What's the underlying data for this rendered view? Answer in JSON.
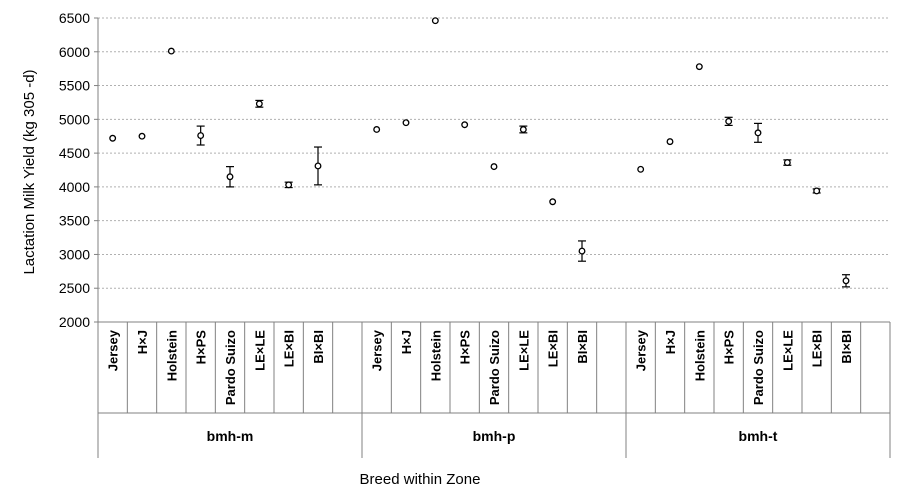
{
  "chart_data": {
    "type": "scatter",
    "ylabel": "Lactation Milk Yield  (kg  305 -d)",
    "xlabel": "Breed within Zone",
    "ylim": [
      2000,
      6500
    ],
    "ytick_step": 500,
    "y_ticks": [
      "2000",
      "2500",
      "3000",
      "3500",
      "4000",
      "4500",
      "5000",
      "5500",
      "6000",
      "6500"
    ],
    "grid": "horizontal-dotted",
    "colors": {
      "marker": "#000000",
      "grid": "#b0b0b0",
      "axis": "#808080"
    },
    "zones": [
      {
        "name": "bmh-m",
        "points": [
          {
            "breed": "Jersey",
            "y": 4720,
            "err": 0
          },
          {
            "breed": "H×J",
            "y": 4750,
            "err": 0
          },
          {
            "breed": "Holstein",
            "y": 6010,
            "err": 0
          },
          {
            "breed": "H×PS",
            "y": 4760,
            "err": 140
          },
          {
            "breed": "Pardo Suizo",
            "y": 4150,
            "err": 150
          },
          {
            "breed": "LE×LE",
            "y": 5230,
            "err": 50
          },
          {
            "breed": "LE×BI",
            "y": 4030,
            "err": 40
          },
          {
            "breed": "BI×BI",
            "y": 4310,
            "err": 280
          }
        ]
      },
      {
        "name": "bmh-p",
        "points": [
          {
            "breed": "Jersey",
            "y": 4850,
            "err": 0
          },
          {
            "breed": "H×J",
            "y": 4950,
            "err": 0
          },
          {
            "breed": "Holstein",
            "y": 6460,
            "err": 0
          },
          {
            "breed": "H×PS",
            "y": 4920,
            "err": 0
          },
          {
            "breed": "Pardo Suizo",
            "y": 4300,
            "err": 0
          },
          {
            "breed": "LE×LE",
            "y": 4850,
            "err": 50
          },
          {
            "breed": "LE×BI",
            "y": 3780,
            "err": 0
          },
          {
            "breed": "BI×BI",
            "y": 3050,
            "err": 150
          }
        ]
      },
      {
        "name": "bmh-t",
        "points": [
          {
            "breed": "Jersey",
            "y": 4260,
            "err": 0
          },
          {
            "breed": "H×J",
            "y": 4670,
            "err": 0
          },
          {
            "breed": "Holstein",
            "y": 5780,
            "err": 0
          },
          {
            "breed": "H×PS",
            "y": 4970,
            "err": 60
          },
          {
            "breed": "Pardo Suizo",
            "y": 4800,
            "err": 140
          },
          {
            "breed": "LE×LE",
            "y": 4360,
            "err": 40
          },
          {
            "breed": "LE×BI",
            "y": 3940,
            "err": 30
          },
          {
            "breed": "BI×BI",
            "y": 2610,
            "err": 90
          }
        ]
      }
    ]
  }
}
